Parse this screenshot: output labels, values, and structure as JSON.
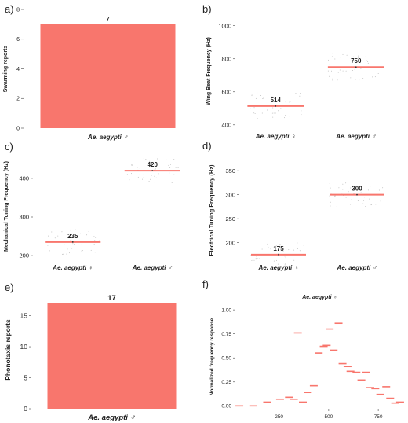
{
  "colors": {
    "bar": "#f8766d",
    "line": "#f8766d",
    "text": "#222222",
    "axis": "#444444"
  },
  "chart_data": [
    {
      "panel_label": "a)",
      "type": "bar",
      "title": "",
      "xlabel": "",
      "ylabel": "Swarming reports",
      "categories": [
        "Ae. aegypti ♂"
      ],
      "values": [
        7
      ],
      "data_labels": [
        "7"
      ],
      "ylim": [
        0,
        8
      ],
      "yticks": [
        0,
        2,
        4,
        6,
        8
      ],
      "grid": false
    },
    {
      "panel_label": "b)",
      "type": "scatter",
      "title": "",
      "xlabel": "",
      "ylabel": "Wing Beat Frequency (Hz)",
      "categories": [
        "Ae. aegypti ♀",
        "Ae. aegypti ♂"
      ],
      "values": [
        514,
        750
      ],
      "data_labels": [
        "514",
        "750"
      ],
      "ylim": [
        380,
        1070
      ],
      "yticks": [
        400,
        600,
        800,
        1000
      ],
      "grid": false
    },
    {
      "panel_label": "c)",
      "type": "scatter",
      "title": "",
      "xlabel": "",
      "ylabel": "Mechanical Tuning Frequency (Hz)",
      "categories": [
        "Ae. aegypti ♀",
        "Ae. aegypti ♂"
      ],
      "values": [
        235,
        420
      ],
      "data_labels": [
        "235",
        "420"
      ],
      "ylim": [
        190,
        465
      ],
      "yticks": [
        200,
        300,
        400
      ],
      "grid": false
    },
    {
      "panel_label": "d)",
      "type": "scatter",
      "title": "",
      "xlabel": "",
      "ylabel": "Electrical Tuning Frequency (Hz)",
      "categories": [
        "Ae. aegypti ♀",
        "Ae. aegypti ♂"
      ],
      "values": [
        175,
        300
      ],
      "data_labels": [
        "175",
        "300"
      ],
      "ylim": [
        165,
        370
      ],
      "yticks": [
        200,
        250,
        300,
        350
      ],
      "grid": false
    },
    {
      "panel_label": "e)",
      "type": "bar",
      "title": "",
      "xlabel": "",
      "ylabel": "Phonotaxis reports",
      "categories": [
        "Ae. aegypti ♂"
      ],
      "values": [
        17
      ],
      "data_labels": [
        "17"
      ],
      "ylim": [
        0,
        19
      ],
      "yticks": [
        0,
        5,
        10,
        15
      ],
      "grid": false
    },
    {
      "panel_label": "f)",
      "type": "scatter",
      "title": "Ae. aegypti ♂",
      "xlabel": "",
      "ylabel": "Normalized frequency response",
      "x": [
        50,
        120,
        190,
        255,
        300,
        325,
        345,
        370,
        395,
        425,
        450,
        475,
        490,
        505,
        525,
        550,
        570,
        595,
        610,
        640,
        665,
        690,
        710,
        735,
        760,
        790,
        810,
        835,
        860
      ],
      "y": [
        0.0,
        0.0,
        0.04,
        0.07,
        0.09,
        0.07,
        0.76,
        0.04,
        0.14,
        0.21,
        0.55,
        0.62,
        0.63,
        0.8,
        0.58,
        0.86,
        0.44,
        0.41,
        0.36,
        0.35,
        0.27,
        0.35,
        0.19,
        0.18,
        0.12,
        0.2,
        0.08,
        0.03,
        0.04
      ],
      "xlim": [
        30,
        880
      ],
      "ylim": [
        -0.03,
        1.05
      ],
      "xticks": [
        250,
        500,
        750
      ],
      "yticks": [
        0.0,
        0.25,
        0.5,
        0.75,
        1.0
      ],
      "ytick_labels": [
        "0.00",
        "0.25",
        "0.50",
        "0.75",
        "1.00"
      ],
      "grid": false
    }
  ]
}
